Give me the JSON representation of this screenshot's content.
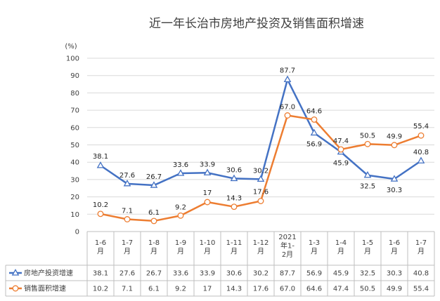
{
  "chart_data": {
    "type": "line",
    "title": "近一年长治市房地产投资及销售面积增速",
    "unit_label": "(%)",
    "ylim": [
      0,
      100
    ],
    "yticks": [
      0,
      10,
      20,
      30,
      40,
      50,
      60,
      70,
      80,
      90,
      100
    ],
    "grid": true,
    "legend": "bottom-table",
    "categories": [
      "1-6月",
      "1-7月",
      "1-8月",
      "1-9月",
      "1-10月",
      "1-11月",
      "1-12月",
      "2021年1-2月",
      "1-3月",
      "1-4月",
      "1-5月",
      "1-6月",
      "1-7月"
    ],
    "category_lines": [
      [
        "1-6",
        "月"
      ],
      [
        "1-7",
        "月"
      ],
      [
        "1-8",
        "月"
      ],
      [
        "1-9",
        "月"
      ],
      [
        "1-10",
        "月"
      ],
      [
        "1-11",
        "月"
      ],
      [
        "1-12",
        "月"
      ],
      [
        "2021",
        "年1-",
        "2月"
      ],
      [
        "1-3",
        "月"
      ],
      [
        "1-4",
        "月"
      ],
      [
        "1-5",
        "月"
      ],
      [
        "1-6",
        "月"
      ],
      [
        "1-7",
        "月"
      ]
    ],
    "series": [
      {
        "name": "房地产投资增速",
        "color": "#4472C4",
        "marker": "triangle",
        "values": [
          38.1,
          27.6,
          26.7,
          33.6,
          33.9,
          30.6,
          30.2,
          87.7,
          56.9,
          45.9,
          32.5,
          30.3,
          40.8
        ],
        "labels": [
          "38.1",
          "27.6",
          "26.7",
          "33.6",
          "33.9",
          "30.6",
          "30.2",
          "87.7",
          "56.9",
          "45.9",
          "32.5",
          "30.3",
          "40.8"
        ]
      },
      {
        "name": "销售面积增速",
        "color": "#ED7D31",
        "marker": "circle",
        "values": [
          10.2,
          7.1,
          6.1,
          9.2,
          17,
          14.3,
          17.6,
          67.0,
          64.6,
          47.4,
          50.5,
          49.9,
          55.4
        ],
        "labels": [
          "10.2",
          "7.1",
          "6.1",
          "9.2",
          "17",
          "14.3",
          "17.6",
          "67.0",
          "64.6",
          "47.4",
          "50.5",
          "49.9",
          "55.4"
        ]
      }
    ]
  }
}
